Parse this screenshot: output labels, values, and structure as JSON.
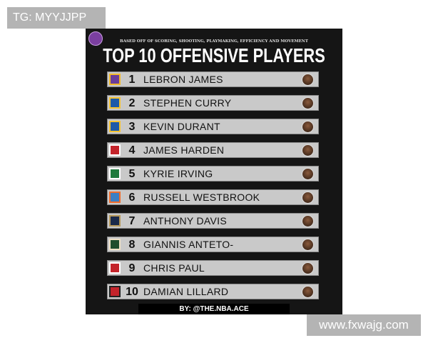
{
  "watermarks": {
    "top_left": "TG: MYYJJPP",
    "bottom_right": "www.fxwajg.com"
  },
  "poster": {
    "subtitle": "BASED OFF OF SCORING, SHOOTING, PLAYMAKING, EFFICIENCY AND MOVEMENT",
    "title": "TOP 10 OFFENSIVE PLAYERS",
    "credit": "BY: @THE.NBA.ACE",
    "players": [
      {
        "rank": "1",
        "name": "LEBRON JAMES",
        "team_color": "#6a3d9a",
        "team_accent": "#f2b829"
      },
      {
        "rank": "2",
        "name": "STEPHEN CURRY",
        "team_color": "#1d5aa8",
        "team_accent": "#f5c332"
      },
      {
        "rank": "3",
        "name": "KEVIN DURANT",
        "team_color": "#1d5aa8",
        "team_accent": "#f5c332"
      },
      {
        "rank": "4",
        "name": "JAMES HARDEN",
        "team_color": "#c4242b",
        "team_accent": "#ffffff"
      },
      {
        "rank": "5",
        "name": "KYRIE IRVING",
        "team_color": "#1e7a3c",
        "team_accent": "#ffffff"
      },
      {
        "rank": "6",
        "name": "RUSSELL WESTBROOK",
        "team_color": "#3a7fc4",
        "team_accent": "#ef6c2c"
      },
      {
        "rank": "7",
        "name": "ANTHONY DAVIS",
        "team_color": "#1b2a4a",
        "team_accent": "#b5985a"
      },
      {
        "rank": "8",
        "name": "GIANNIS ANTETO-",
        "team_color": "#1f4d2b",
        "team_accent": "#eee1c6"
      },
      {
        "rank": "9",
        "name": "CHRIS PAUL",
        "team_color": "#c4242b",
        "team_accent": "#ffffff"
      },
      {
        "rank": "10",
        "name": "DAMIAN LILLARD",
        "team_color": "#c4242b",
        "team_accent": "#222222"
      }
    ]
  }
}
